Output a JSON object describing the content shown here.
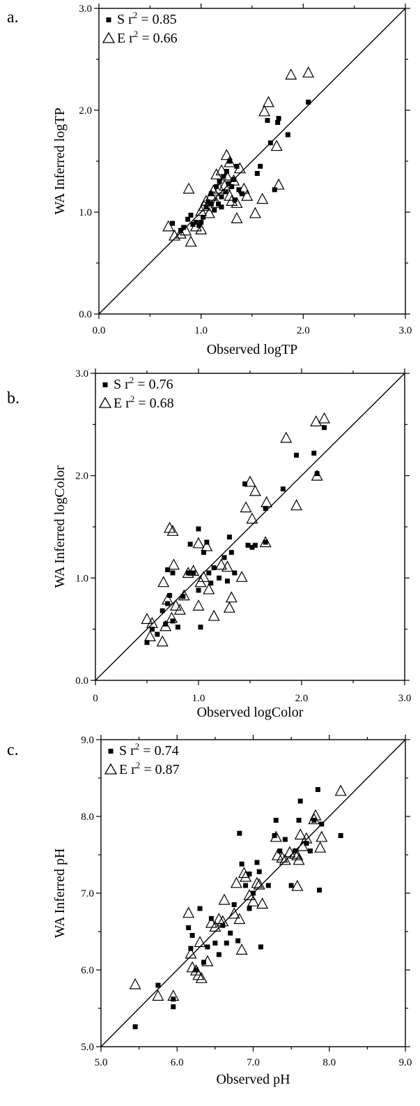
{
  "chart_data": [
    {
      "type": "scatter",
      "panel_label": "a.",
      "xlabel": "Observed logTP",
      "ylabel": "WA Inferred logTP",
      "xlim": [
        0,
        3
      ],
      "ylim": [
        0,
        3
      ],
      "xticks": [
        "0.0",
        "1.0",
        "2.0",
        "3.0"
      ],
      "yticks": [
        "0.0",
        "1.0",
        "2.0",
        "3.0"
      ],
      "reference_line": "1:1",
      "legend": {
        "position": "top-left",
        "entries": [
          {
            "marker": "square",
            "text": "S r",
            "sup": "2",
            "tail": " = 0.85"
          },
          {
            "marker": "triangle",
            "text": "E r",
            "sup": "2",
            "tail": " = 0.66"
          }
        ]
      },
      "series": [
        {
          "marker": "square",
          "points": [
            [
              0.72,
              0.89
            ],
            [
              0.8,
              0.82
            ],
            [
              0.83,
              0.85
            ],
            [
              0.87,
              0.93
            ],
            [
              0.9,
              0.97
            ],
            [
              0.92,
              0.88
            ],
            [
              0.95,
              0.9
            ],
            [
              0.98,
              0.87
            ],
            [
              1.0,
              0.9
            ],
            [
              1.02,
              0.95
            ],
            [
              1.05,
              1.05
            ],
            [
              1.07,
              1.1
            ],
            [
              1.1,
              1.08
            ],
            [
              1.1,
              1.18
            ],
            [
              1.13,
              1.02
            ],
            [
              1.15,
              1.25
            ],
            [
              1.17,
              1.08
            ],
            [
              1.18,
              1.3
            ],
            [
              1.2,
              1.15
            ],
            [
              1.22,
              1.35
            ],
            [
              1.24,
              1.2
            ],
            [
              1.25,
              1.4
            ],
            [
              1.27,
              1.28
            ],
            [
              1.28,
              1.5
            ],
            [
              1.3,
              1.25
            ],
            [
              1.32,
              1.32
            ],
            [
              1.35,
              1.45
            ],
            [
              1.37,
              1.22
            ],
            [
              1.4,
              1.18
            ],
            [
              1.55,
              1.38
            ],
            [
              1.58,
              1.45
            ],
            [
              1.65,
              1.9
            ],
            [
              1.68,
              1.68
            ],
            [
              1.75,
              1.88
            ],
            [
              1.76,
              1.92
            ],
            [
              1.72,
              1.22
            ],
            [
              1.85,
              1.76
            ],
            [
              2.05,
              2.08
            ],
            [
              1.2,
              1.05
            ],
            [
              1.33,
              1.12
            ]
          ]
        },
        {
          "marker": "triangle",
          "points": [
            [
              0.68,
              0.85
            ],
            [
              0.74,
              0.76
            ],
            [
              0.8,
              0.78
            ],
            [
              0.85,
              0.81
            ],
            [
              0.88,
              1.22
            ],
            [
              0.9,
              0.7
            ],
            [
              0.95,
              0.85
            ],
            [
              1.0,
              1.0
            ],
            [
              1.0,
              0.82
            ],
            [
              1.03,
              1.05
            ],
            [
              1.05,
              1.1
            ],
            [
              1.08,
              0.98
            ],
            [
              1.1,
              1.15
            ],
            [
              1.12,
              1.2
            ],
            [
              1.15,
              1.36
            ],
            [
              1.18,
              1.22
            ],
            [
              1.2,
              1.4
            ],
            [
              1.23,
              1.25
            ],
            [
              1.25,
              1.55
            ],
            [
              1.25,
              1.35
            ],
            [
              1.28,
              1.48
            ],
            [
              1.3,
              1.1
            ],
            [
              1.32,
              1.3
            ],
            [
              1.35,
              1.08
            ],
            [
              1.35,
              0.93
            ],
            [
              1.38,
              1.42
            ],
            [
              1.42,
              1.22
            ],
            [
              1.45,
              1.15
            ],
            [
              1.53,
              0.98
            ],
            [
              1.6,
              1.12
            ],
            [
              1.62,
              1.98
            ],
            [
              1.66,
              2.07
            ],
            [
              1.74,
              1.64
            ],
            [
              1.76,
              1.26
            ],
            [
              1.88,
              2.34
            ],
            [
              2.05,
              2.36
            ],
            [
              1.28,
              1.15
            ],
            [
              1.15,
              1.08
            ]
          ]
        }
      ]
    },
    {
      "type": "scatter",
      "panel_label": "b.",
      "xlabel": "Observed logColor",
      "ylabel": "WA Inferred logColor",
      "xlim": [
        0,
        3
      ],
      "ylim": [
        0,
        3
      ],
      "xticks": [
        "0",
        "1.0",
        "2.0",
        "3.0"
      ],
      "yticks": [
        "0.0",
        "1.0",
        "2.0",
        "3.0"
      ],
      "reference_line": "1:1",
      "legend": {
        "position": "top-left",
        "entries": [
          {
            "marker": "square",
            "text": "S r",
            "sup": "2",
            "tail": " = 0.76"
          },
          {
            "marker": "triangle",
            "text": "E r",
            "sup": "2",
            "tail": " = 0.68"
          }
        ]
      },
      "series": [
        {
          "marker": "square",
          "points": [
            [
              0.5,
              0.37
            ],
            [
              0.55,
              0.5
            ],
            [
              0.6,
              0.45
            ],
            [
              0.65,
              0.68
            ],
            [
              0.68,
              0.55
            ],
            [
              0.7,
              0.75
            ],
            [
              0.72,
              0.83
            ],
            [
              0.75,
              0.58
            ],
            [
              0.75,
              1.05
            ],
            [
              0.8,
              0.52
            ],
            [
              0.85,
              0.82
            ],
            [
              0.9,
              1.05
            ],
            [
              0.92,
              1.33
            ],
            [
              0.95,
              1.05
            ],
            [
              1.0,
              1.48
            ],
            [
              1.0,
              0.88
            ],
            [
              1.02,
              0.52
            ],
            [
              1.05,
              1.25
            ],
            [
              1.08,
              1.35
            ],
            [
              1.1,
              1.05
            ],
            [
              1.12,
              0.95
            ],
            [
              1.15,
              1.1
            ],
            [
              1.2,
              1.0
            ],
            [
              1.25,
              1.2
            ],
            [
              1.28,
              0.97
            ],
            [
              1.3,
              1.4
            ],
            [
              1.32,
              1.25
            ],
            [
              1.35,
              1.05
            ],
            [
              1.45,
              1.92
            ],
            [
              1.48,
              1.32
            ],
            [
              1.52,
              1.3
            ],
            [
              1.55,
              1.32
            ],
            [
              1.65,
              1.35
            ],
            [
              1.65,
              1.68
            ],
            [
              1.82,
              1.87
            ],
            [
              1.95,
              2.2
            ],
            [
              2.12,
              2.22
            ],
            [
              2.15,
              2.02
            ],
            [
              2.22,
              2.47
            ],
            [
              0.7,
              1.08
            ]
          ]
        },
        {
          "marker": "triangle",
          "points": [
            [
              0.5,
              0.59
            ],
            [
              0.53,
              0.42
            ],
            [
              0.55,
              0.55
            ],
            [
              0.65,
              0.37
            ],
            [
              0.66,
              0.95
            ],
            [
              0.68,
              0.52
            ],
            [
              0.7,
              0.78
            ],
            [
              0.72,
              1.48
            ],
            [
              0.74,
              0.6
            ],
            [
              0.75,
              1.45
            ],
            [
              0.76,
              1.12
            ],
            [
              0.78,
              0.72
            ],
            [
              0.82,
              0.68
            ],
            [
              0.86,
              0.82
            ],
            [
              0.9,
              1.04
            ],
            [
              0.95,
              1.06
            ],
            [
              1.0,
              1.33
            ],
            [
              1.0,
              0.72
            ],
            [
              1.02,
              0.95
            ],
            [
              1.05,
              1.0
            ],
            [
              1.08,
              1.3
            ],
            [
              1.1,
              0.88
            ],
            [
              1.15,
              0.62
            ],
            [
              1.22,
              1.12
            ],
            [
              1.28,
              1.1
            ],
            [
              1.3,
              0.7
            ],
            [
              1.32,
              0.8
            ],
            [
              1.42,
              1.0
            ],
            [
              1.46,
              1.68
            ],
            [
              1.5,
              1.93
            ],
            [
              1.52,
              1.57
            ],
            [
              1.55,
              1.84
            ],
            [
              1.65,
              1.34
            ],
            [
              1.66,
              1.73
            ],
            [
              1.85,
              2.36
            ],
            [
              1.95,
              1.7
            ],
            [
              2.14,
              2.52
            ],
            [
              2.15,
              1.99
            ],
            [
              2.22,
              2.55
            ]
          ]
        }
      ]
    },
    {
      "type": "scatter",
      "panel_label": "c.",
      "xlabel": "Observed pH",
      "ylabel": "WA Inferred pH",
      "xlim": [
        5,
        9
      ],
      "ylim": [
        5,
        9
      ],
      "xticks": [
        "5.0",
        "6.0",
        "7.0",
        "8.0",
        "9.0"
      ],
      "yticks": [
        "5.0",
        "6.0",
        "7.0",
        "8.0",
        "9.0"
      ],
      "reference_line": "1:1",
      "legend": {
        "position": "top-left",
        "entries": [
          {
            "marker": "square",
            "text": "S r",
            "sup": "2",
            "tail": " = 0.74"
          },
          {
            "marker": "triangle",
            "text": "E r",
            "sup": "2",
            "tail": " = 0.87"
          }
        ]
      },
      "series": [
        {
          "marker": "square",
          "points": [
            [
              5.45,
              5.26
            ],
            [
              5.75,
              5.8
            ],
            [
              5.95,
              5.52
            ],
            [
              5.95,
              5.62
            ],
            [
              6.15,
              6.55
            ],
            [
              6.18,
              6.28
            ],
            [
              6.2,
              6.45
            ],
            [
              6.25,
              6.0
            ],
            [
              6.3,
              6.8
            ],
            [
              6.35,
              6.1
            ],
            [
              6.4,
              6.3
            ],
            [
              6.45,
              6.67
            ],
            [
              6.5,
              6.35
            ],
            [
              6.55,
              6.2
            ],
            [
              6.6,
              6.58
            ],
            [
              6.65,
              6.35
            ],
            [
              6.7,
              6.48
            ],
            [
              6.75,
              6.85
            ],
            [
              6.8,
              6.38
            ],
            [
              6.82,
              7.78
            ],
            [
              6.85,
              7.38
            ],
            [
              6.9,
              7.1
            ],
            [
              6.95,
              6.8
            ],
            [
              7.0,
              7.0
            ],
            [
              7.05,
              7.4
            ],
            [
              7.08,
              7.28
            ],
            [
              7.1,
              6.3
            ],
            [
              7.2,
              7.1
            ],
            [
              7.3,
              7.95
            ],
            [
              7.35,
              7.55
            ],
            [
              7.42,
              7.7
            ],
            [
              7.5,
              7.1
            ],
            [
              7.55,
              7.55
            ],
            [
              7.6,
              7.95
            ],
            [
              7.62,
              8.2
            ],
            [
              7.7,
              7.65
            ],
            [
              7.75,
              7.55
            ],
            [
              7.8,
              7.95
            ],
            [
              7.85,
              8.35
            ],
            [
              7.87,
              7.04
            ],
            [
              7.9,
              7.9
            ],
            [
              8.15,
              7.75
            ],
            [
              7.28,
              7.75
            ],
            [
              6.95,
              7.25
            ]
          ]
        },
        {
          "marker": "triangle",
          "points": [
            [
              5.45,
              5.8
            ],
            [
              5.75,
              5.65
            ],
            [
              5.95,
              5.65
            ],
            [
              6.15,
              6.73
            ],
            [
              6.18,
              6.2
            ],
            [
              6.2,
              6.02
            ],
            [
              6.25,
              5.98
            ],
            [
              6.28,
              5.92
            ],
            [
              6.32,
              5.88
            ],
            [
              6.3,
              6.35
            ],
            [
              6.4,
              6.1
            ],
            [
              6.45,
              6.6
            ],
            [
              6.5,
              6.55
            ],
            [
              6.55,
              6.65
            ],
            [
              6.6,
              6.62
            ],
            [
              6.62,
              6.9
            ],
            [
              6.75,
              6.72
            ],
            [
              6.78,
              7.12
            ],
            [
              6.82,
              6.65
            ],
            [
              6.85,
              6.25
            ],
            [
              6.88,
              7.25
            ],
            [
              6.9,
              7.2
            ],
            [
              6.95,
              6.96
            ],
            [
              7.0,
              6.88
            ],
            [
              7.05,
              7.12
            ],
            [
              7.08,
              7.1
            ],
            [
              7.12,
              6.85
            ],
            [
              7.3,
              7.72
            ],
            [
              7.32,
              7.48
            ],
            [
              7.38,
              7.45
            ],
            [
              7.42,
              7.42
            ],
            [
              7.48,
              7.52
            ],
            [
              7.55,
              7.5
            ],
            [
              7.58,
              7.48
            ],
            [
              7.6,
              7.42
            ],
            [
              7.62,
              7.75
            ],
            [
              7.65,
              7.6
            ],
            [
              7.7,
              7.7
            ],
            [
              7.8,
              7.95
            ],
            [
              7.82,
              8.0
            ],
            [
              7.88,
              7.58
            ],
            [
              7.9,
              7.72
            ],
            [
              8.15,
              8.32
            ],
            [
              7.58,
              7.08
            ]
          ]
        }
      ]
    }
  ]
}
